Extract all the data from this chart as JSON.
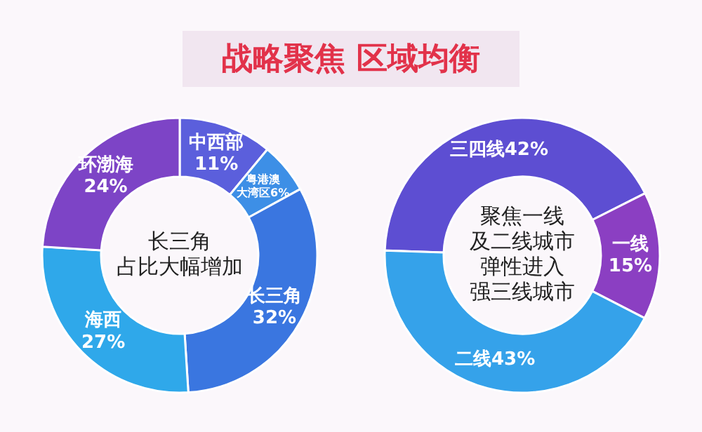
{
  "chart_data": [
    {
      "type": "donut",
      "title": "战略聚焦 区域均衡",
      "categories": [
        "中西部",
        "粤港澳大湾区",
        "长三角",
        "海西",
        "环渤海"
      ],
      "values": [
        11,
        6,
        32,
        27,
        24
      ],
      "value_labels": [
        "11%",
        "6%",
        "32%",
        "27%",
        "24%"
      ],
      "colors": [
        "#5b5fdc",
        "#3d8fe6",
        "#3a76e0",
        "#2fa8ea",
        "#7d44c6"
      ],
      "annotations": [
        "长三角占比大幅增加"
      ]
    },
    {
      "type": "donut",
      "categories": [
        "三四线",
        "一线",
        "二线"
      ],
      "values": [
        42,
        15,
        43
      ],
      "value_labels": [
        "42%",
        "15%",
        "43%"
      ],
      "colors": [
        "#5d4ed2",
        "#8b3fc2",
        "#35a2ea"
      ],
      "annotations": [
        "聚焦一线及二线城市弹性进入强三线城市"
      ]
    }
  ]
}
